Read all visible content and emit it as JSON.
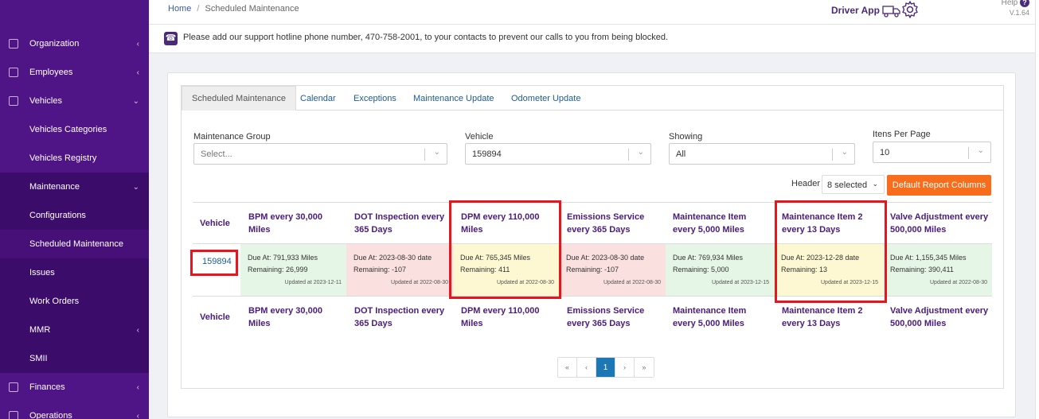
{
  "breadcrumb": {
    "home": "Home",
    "separator": "/",
    "current": "Scheduled Maintenance"
  },
  "header": {
    "driver_app": "Driver App",
    "help": "Help",
    "help_icon": "?",
    "version": "V.1.64"
  },
  "notice": {
    "text": "Please add our support hotline phone number, 470-758-2001, to your contacts to prevent our calls to you from being blocked."
  },
  "sidebar": {
    "items": [
      {
        "label": "Organization",
        "chevron": "‹"
      },
      {
        "label": "Employees",
        "chevron": "‹"
      },
      {
        "label": "Vehicles",
        "chevron": "⌄"
      },
      {
        "label": "Vehicles Categories"
      },
      {
        "label": "Vehicles Registry"
      },
      {
        "label": "Maintenance",
        "chevron": "⌄"
      },
      {
        "label": "Configurations"
      },
      {
        "label": "Scheduled Maintenance"
      },
      {
        "label": "Issues"
      },
      {
        "label": "Work Orders"
      },
      {
        "label": "MMR",
        "chevron": "‹"
      },
      {
        "label": "SMII"
      },
      {
        "label": "Finances",
        "chevron": "‹"
      },
      {
        "label": "Operations",
        "chevron": "‹"
      }
    ]
  },
  "tabs": [
    "Scheduled Maintenance",
    "Calendar",
    "Exceptions",
    "Maintenance Update",
    "Odometer Update"
  ],
  "filters": {
    "maintenance_group": {
      "label": "Maintenance Group",
      "value": "Select..."
    },
    "vehicle": {
      "label": "Vehicle",
      "value": "159894"
    },
    "showing": {
      "label": "Showing",
      "value": "All"
    },
    "items_per_page": {
      "label": "Itens Per Page",
      "value": "10"
    }
  },
  "toolbar": {
    "header_label": "Header",
    "header_value": "8 selected",
    "default_button": "Default Report Columns"
  },
  "table": {
    "columns": [
      "Vehicle",
      "BPM every 30,000 Miles",
      "DOT Inspection every 365 Days",
      "DPM every 110,000 Miles",
      "Emissions Service every 365 Days",
      "Maintenance Item every 5,000 Miles",
      "Maintenance Item 2 every 13 Days",
      "Valve Adjustment every 500,000 Miles"
    ],
    "row": {
      "vehicle": "159894",
      "cells": [
        {
          "due": "Due At: 791,933 Miles",
          "remaining": "Remaining: 26,999",
          "updated": "Updated at 2023-12-11",
          "status": "green"
        },
        {
          "due": "Due At: 2023-08-30 date",
          "remaining": "Remaining: -107",
          "updated": "Updated at 2022-08-30",
          "status": "red"
        },
        {
          "due": "Due At: 765,345 Miles",
          "remaining": "Remaining: 411",
          "updated": "Updated at 2022-08-30",
          "status": "yellow"
        },
        {
          "due": "Due At: 2023-08-30 date",
          "remaining": "Remaining: -107",
          "updated": "Updated at 2022-08-30",
          "status": "red"
        },
        {
          "due": "Due At: 769,934 Miles",
          "remaining": "Remaining: 5,000",
          "updated": "Updated at 2023-12-15",
          "status": "green"
        },
        {
          "due": "Due At: 2023-12-28 date",
          "remaining": "Remaining: 13",
          "updated": "Updated at 2023-12-15",
          "status": "yellow"
        },
        {
          "due": "Due At: 1,155,345 Miles",
          "remaining": "Remaining: 390,411",
          "updated": "Updated at 2022-08-30",
          "status": "green"
        }
      ]
    }
  },
  "pagination": {
    "first": "«",
    "prev": "‹",
    "current": "1",
    "next": "›",
    "last": "»"
  },
  "colors": {
    "sidebar": "#4f1486",
    "accent": "#f76d1b",
    "highlight": "#e8141e",
    "link": "#1a5b9a"
  }
}
